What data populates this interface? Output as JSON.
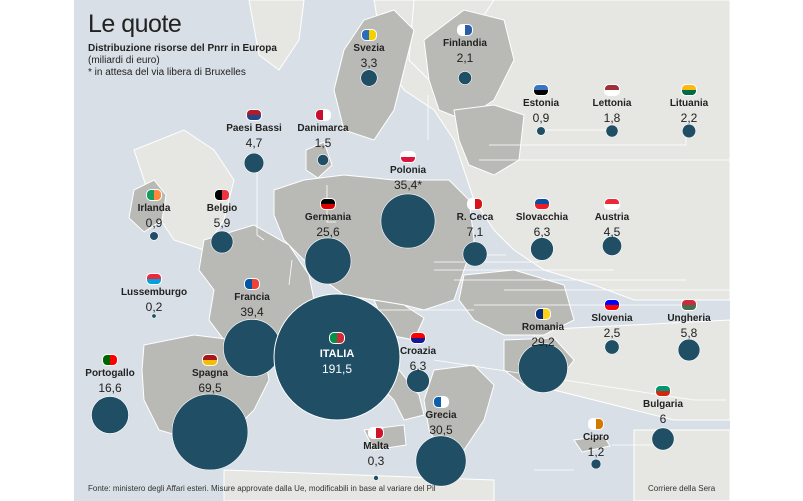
{
  "header": {
    "title": "Le quote",
    "subtitle": "Distribuzione risorse del Pnrr in Europa",
    "unit": "(miliardi di euro)",
    "note": "* in attesa del via libera di Bruxelles"
  },
  "footer": {
    "source": "Fonte: ministero degli Affari esteri. Misure approvate dalla Ue, modificabili in base al variare del Pil",
    "credit": "Corriere della Sera"
  },
  "colors": {
    "sea": "#d8dfe6",
    "land_eu": "#b9b9b6",
    "land_other": "#e6e6e3",
    "bubble": "#1f4e65",
    "leader": "#ffffff"
  },
  "countries": [
    {
      "name": "Svezia",
      "value": "3,3",
      "amount": 3.3,
      "flag": "sweden-flag-icon"
    },
    {
      "name": "Finlandia",
      "value": "2,1",
      "amount": 2.1,
      "flag": "finland-flag-icon"
    },
    {
      "name": "Estonia",
      "value": "0,9",
      "amount": 0.9,
      "flag": "estonia-flag-icon"
    },
    {
      "name": "Lettonia",
      "value": "1,8",
      "amount": 1.8,
      "flag": "latvia-flag-icon"
    },
    {
      "name": "Lituania",
      "value": "2,2",
      "amount": 2.2,
      "flag": "lithuania-flag-icon"
    },
    {
      "name": "Paesi Bassi",
      "value": "4,7",
      "amount": 4.7,
      "flag": "netherlands-flag-icon"
    },
    {
      "name": "Danimarca",
      "value": "1,5",
      "amount": 1.5,
      "flag": "denmark-flag-icon"
    },
    {
      "name": "Polonia",
      "value": "35,4*",
      "amount": 35.4,
      "flag": "poland-flag-icon"
    },
    {
      "name": "Irlanda",
      "value": "0,9",
      "amount": 0.9,
      "flag": "ireland-flag-icon"
    },
    {
      "name": "Belgio",
      "value": "5,9",
      "amount": 5.9,
      "flag": "belgium-flag-icon"
    },
    {
      "name": "Germania",
      "value": "25,6",
      "amount": 25.6,
      "flag": "germany-flag-icon"
    },
    {
      "name": "R. Ceca",
      "value": "7,1",
      "amount": 7.1,
      "flag": "czechia-flag-icon"
    },
    {
      "name": "Slovacchia",
      "value": "6,3",
      "amount": 6.3,
      "flag": "slovakia-flag-icon"
    },
    {
      "name": "Austria",
      "value": "4,5",
      "amount": 4.5,
      "flag": "austria-flag-icon"
    },
    {
      "name": "Lussemburgo",
      "value": "0,2",
      "amount": 0.2,
      "flag": "luxembourg-flag-icon"
    },
    {
      "name": "Francia",
      "value": "39,4",
      "amount": 39.4,
      "flag": "france-flag-icon"
    },
    {
      "name": "Slovenia",
      "value": "2,5",
      "amount": 2.5,
      "flag": "slovenia-flag-icon"
    },
    {
      "name": "Ungheria",
      "value": "5,8",
      "amount": 5.8,
      "flag": "hungary-flag-icon"
    },
    {
      "name": "ITALIA",
      "value": "191,5",
      "amount": 191.5,
      "flag": "italy-flag-icon"
    },
    {
      "name": "Croazia",
      "value": "6,3",
      "amount": 6.3,
      "flag": "croatia-flag-icon"
    },
    {
      "name": "Romania",
      "value": "29,2",
      "amount": 29.2,
      "flag": "romania-flag-icon"
    },
    {
      "name": "Portogallo",
      "value": "16,6",
      "amount": 16.6,
      "flag": "portugal-flag-icon"
    },
    {
      "name": "Spagna",
      "value": "69,5",
      "amount": 69.5,
      "flag": "spain-flag-icon"
    },
    {
      "name": "Grecia",
      "value": "30,5",
      "amount": 30.5,
      "flag": "greece-flag-icon"
    },
    {
      "name": "Bulgaria",
      "value": "6",
      "amount": 6,
      "flag": "bulgaria-flag-icon"
    },
    {
      "name": "Malta",
      "value": "0,3",
      "amount": 0.3,
      "flag": "malta-flag-icon"
    },
    {
      "name": "Cipro",
      "value": "1,2",
      "amount": 1.2,
      "flag": "cyprus-flag-icon"
    }
  ]
}
